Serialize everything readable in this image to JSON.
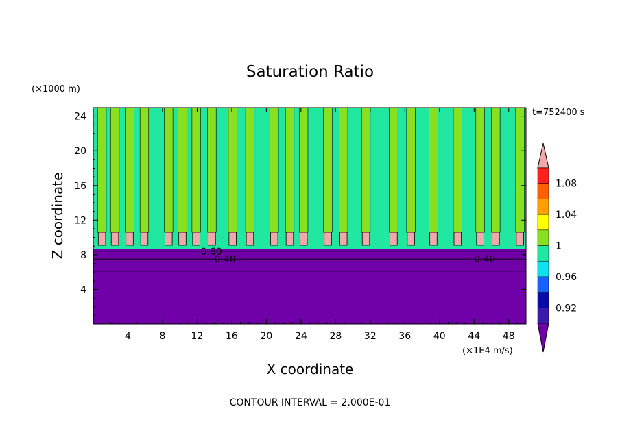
{
  "chart_data": {
    "type": "heatmap",
    "title": "Saturation Ratio",
    "time_label": "t=752400 s",
    "xlabel": "X coordinate",
    "ylabel": "Z coordinate",
    "x_units": "(×1E4 m/s)",
    "y_units": "(×1000 m)",
    "xlim": [
      0,
      50
    ],
    "ylim": [
      0,
      25
    ],
    "x_ticks": [
      4,
      8,
      12,
      16,
      20,
      24,
      28,
      32,
      36,
      40,
      44,
      48
    ],
    "y_ticks": [
      4,
      8,
      12,
      16,
      20,
      24
    ],
    "footer": "CONTOUR INTERVAL = 2.000E-01",
    "colorbar": {
      "levels": [
        0.9,
        0.92,
        0.94,
        0.96,
        0.98,
        1.0,
        1.02,
        1.04,
        1.06,
        1.08,
        1.1
      ],
      "labels": [
        "0.92",
        "0.96",
        "1",
        "1.04",
        "1.08"
      ],
      "label_values": [
        0.92,
        0.96,
        1.0,
        1.04,
        1.08
      ],
      "colors": [
        "#3a1aa8",
        "#0a0aa8",
        "#1860ff",
        "#10e0f0",
        "#20e8a0",
        "#88e020",
        "#ffff00",
        "#ffa000",
        "#ff6000",
        "#ff2020"
      ],
      "under_color": "#7000a8",
      "over_color": "#f0a8a8"
    },
    "contour_labels": [
      {
        "text": "0.60",
        "x": 12.4,
        "z": 8.4
      },
      {
        "text": "0.40",
        "x": 14.0,
        "z": 7.5
      },
      {
        "text": "0.40",
        "x": 44.0,
        "z": 7.5
      }
    ],
    "layers": {
      "dry_layer_top_z": 8.7,
      "cloud_band_z": [
        9.1,
        10.6
      ],
      "band_colors": {
        "high": "#20e8a0",
        "low": "#88e020"
      },
      "plume_x": [
        0.5,
        2.0,
        3.7,
        5.4,
        8.2,
        9.8,
        11.4,
        13.2,
        15.6,
        17.6,
        20.4,
        22.2,
        23.8,
        26.6,
        28.4,
        31.0,
        34.2,
        36.2,
        38.8,
        41.6,
        44.2,
        46.0,
        48.8
      ],
      "plume_width": 1.0
    }
  }
}
